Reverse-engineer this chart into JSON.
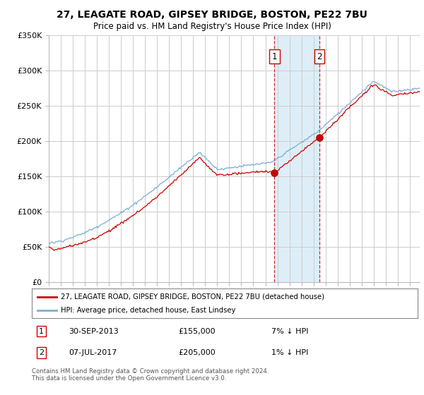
{
  "title": "27, LEAGATE ROAD, GIPSEY BRIDGE, BOSTON, PE22 7BU",
  "subtitle": "Price paid vs. HM Land Registry's House Price Index (HPI)",
  "ylim": [
    0,
    350000
  ],
  "yticks": [
    0,
    50000,
    100000,
    150000,
    200000,
    250000,
    300000,
    350000
  ],
  "ytick_labels": [
    "£0",
    "£50K",
    "£100K",
    "£150K",
    "£200K",
    "£250K",
    "£300K",
    "£350K"
  ],
  "xlim_start": 1995.0,
  "xlim_end": 2025.83,
  "transaction1_x": 2013.75,
  "transaction1_y": 155000,
  "transaction1_label": "30-SEP-2013",
  "transaction1_price": "£155,000",
  "transaction1_hpi": "7% ↓ HPI",
  "transaction2_x": 2017.5,
  "transaction2_y": 205000,
  "transaction2_label": "07-JUL-2017",
  "transaction2_price": "£205,000",
  "transaction2_hpi": "1% ↓ HPI",
  "red_line_color": "#cc0000",
  "blue_line_color": "#7aafd4",
  "shade_color": "#ddeef8",
  "legend_red_label": "27, LEAGATE ROAD, GIPSEY BRIDGE, BOSTON, PE22 7BU (detached house)",
  "legend_blue_label": "HPI: Average price, detached house, East Lindsey",
  "footer": "Contains HM Land Registry data © Crown copyright and database right 2024.\nThis data is licensed under the Open Government Licence v3.0.",
  "background_color": "#ffffff",
  "grid_color": "#cccccc",
  "title_fontsize": 10,
  "subtitle_fontsize": 8.5,
  "tick_fontsize": 8
}
